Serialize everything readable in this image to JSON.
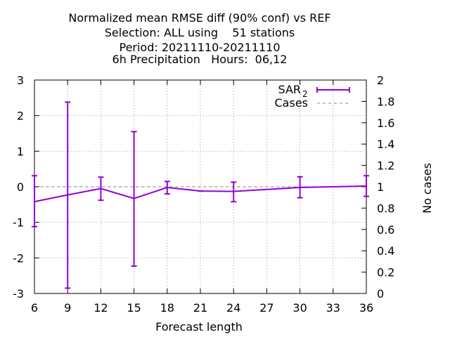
{
  "chart_data": {
    "type": "line",
    "title_lines": [
      "Normalized mean RMSE diff (90% conf) vs REF",
      "Selection: ALL using    51 stations",
      "Period: 20211110-20211110",
      "6h Precipitation   Hours:  06,12"
    ],
    "xlabel": "Forecast length",
    "ylabel": "",
    "y2label": "No cases",
    "xlim": [
      6,
      36
    ],
    "ylim": [
      -3,
      3
    ],
    "y2lim": [
      0,
      2
    ],
    "xticks": [
      "6",
      "9",
      "12",
      "15",
      "18",
      "21",
      "24",
      "27",
      "30",
      "33",
      "36"
    ],
    "yticks": [
      "-3",
      "-2",
      "-1",
      "0",
      "1",
      "2",
      "3"
    ],
    "y2ticks": [
      "0",
      "0.2",
      "0.4",
      "0.6",
      "0.8",
      "1",
      "1.2",
      "1.4",
      "1.6",
      "1.8",
      "2"
    ],
    "grid": true,
    "legend_position": "top-right",
    "legend": {
      "series_label": "SAR",
      "series_subscript": "2",
      "cases_label": "Cases"
    },
    "series": [
      {
        "name": "SAR_2",
        "color": "#9400d3",
        "x": [
          6,
          9,
          12,
          15,
          18,
          21,
          24,
          30,
          36
        ],
        "y": [
          -0.42,
          -0.23,
          -0.05,
          -0.33,
          -0.02,
          -0.12,
          -0.13,
          -0.02,
          0.02
        ],
        "err_low": [
          -1.12,
          -2.85,
          -0.38,
          -2.23,
          -0.2,
          -0.12,
          -0.42,
          -0.31,
          -0.27
        ],
        "err_high": [
          0.31,
          2.38,
          0.27,
          1.55,
          0.15,
          -0.12,
          0.13,
          0.28,
          0.31
        ]
      }
    ],
    "cases": {
      "color": "#a0a0a0",
      "x": [
        6,
        36
      ],
      "y": [
        1,
        1
      ]
    }
  }
}
